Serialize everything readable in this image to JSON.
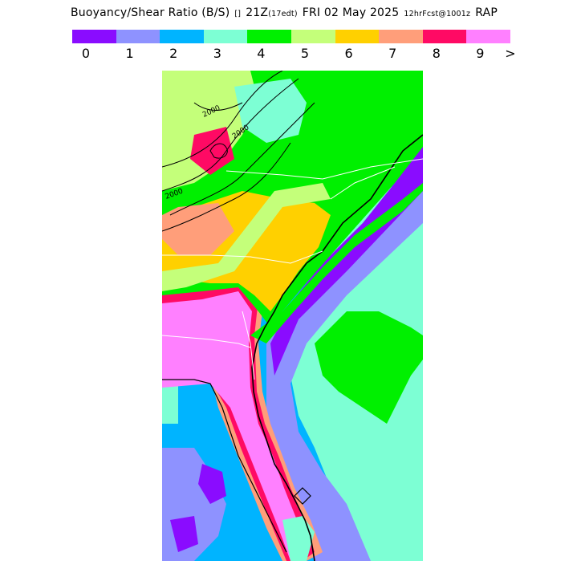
{
  "title": {
    "main": "Buoyancy/Shear Ratio (B/S)",
    "marker": "[]",
    "time": "21Z",
    "time_local": "(17edt)",
    "date": "FRI 02 May 2025",
    "forecast": "12hrFcst@1001z",
    "model": "RAP"
  },
  "legend": {
    "colors": [
      "#8a0cff",
      "#8e92ff",
      "#00b4ff",
      "#7dffd4",
      "#00f000",
      "#c4ff7a",
      "#ffd000",
      "#ff9e7a",
      "#ff0a64",
      "#ff80ff"
    ],
    "ticks": [
      "0",
      "1",
      "2",
      "3",
      "4",
      "5",
      "6",
      "7",
      "8",
      "9",
      ">"
    ]
  },
  "map": {
    "contour_labels": [
      "2000",
      "2000",
      "2000"
    ],
    "colors": {
      "ocean": "#00b4ff",
      "high": "#ff80ff",
      "land_green": "#00f000",
      "lightgreen": "#c4ff7a",
      "orange": "#ffd000",
      "salmon": "#ff9e7a",
      "red": "#ff0a64",
      "aqua": "#7dffd4",
      "lavender": "#8e92ff",
      "purple": "#8a0cff",
      "outline": "#ffffff",
      "coast": "#000000"
    }
  }
}
